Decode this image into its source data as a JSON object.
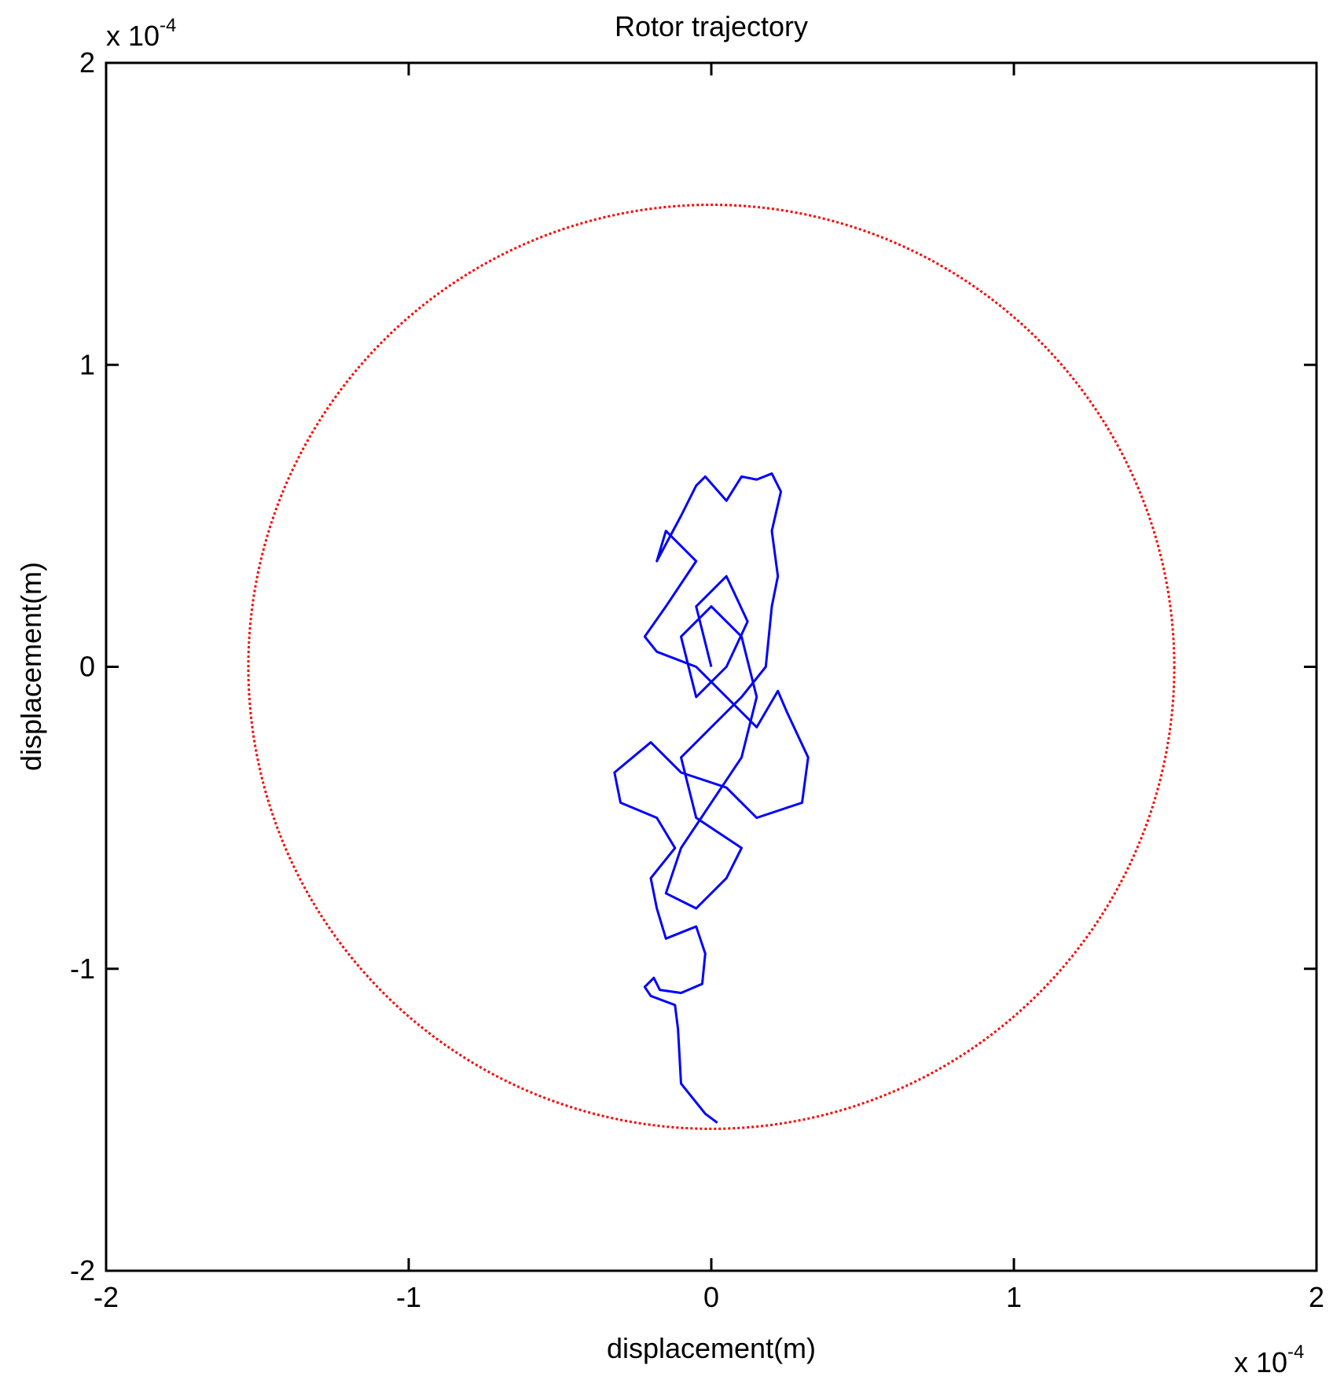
{
  "chart_data": {
    "type": "line",
    "title": "Rotor trajectory",
    "x_label": "displacement(m)",
    "y_label": "displacement(m)",
    "x_multiplier": {
      "base": "x 10",
      "exponent": "-4"
    },
    "y_multiplier": {
      "base": "x 10",
      "exponent": "-4"
    },
    "xlim": [
      -2,
      2
    ],
    "ylim": [
      -2,
      2
    ],
    "xticks": [
      -2,
      -1,
      0,
      1,
      2
    ],
    "yticks": [
      -2,
      -1,
      0,
      1,
      2
    ],
    "circle": {
      "center": [
        0,
        0
      ],
      "radius": 1.53,
      "color": "#ff0000"
    },
    "series": [
      {
        "color": "#0000ff",
        "x": [
          0.02,
          -0.02,
          -0.1,
          -0.11,
          -0.12,
          -0.2,
          -0.22,
          -0.19,
          -0.17,
          -0.1,
          -0.03,
          -0.02,
          -0.05,
          -0.15,
          -0.18,
          -0.2,
          -0.12,
          -0.18,
          -0.3,
          -0.32,
          -0.2,
          -0.1,
          0.05,
          0.15,
          0.3,
          0.32,
          0.25,
          0.22,
          0.15,
          0.05,
          -0.05,
          -0.18,
          -0.22,
          -0.15,
          -0.05,
          -0.15,
          -0.18,
          -0.1,
          -0.05,
          -0.02,
          0.05,
          0.1,
          0.15,
          0.2,
          0.23,
          0.2,
          0.22,
          0.2,
          0.18,
          0.1,
          0.0,
          -0.1,
          -0.05,
          0.1,
          0.05,
          -0.05,
          -0.15,
          -0.1,
          0.0,
          0.1,
          0.15,
          0.1,
          0.0,
          -0.1,
          -0.05,
          0.05,
          0.12,
          0.05,
          -0.05,
          0.0
        ],
        "y": [
          -1.51,
          -1.48,
          -1.38,
          -1.2,
          -1.12,
          -1.09,
          -1.06,
          -1.03,
          -1.07,
          -1.08,
          -1.05,
          -0.95,
          -0.86,
          -0.9,
          -0.8,
          -0.7,
          -0.6,
          -0.5,
          -0.45,
          -0.35,
          -0.25,
          -0.35,
          -0.4,
          -0.5,
          -0.45,
          -0.3,
          -0.15,
          -0.08,
          -0.2,
          -0.1,
          0.0,
          0.05,
          0.1,
          0.2,
          0.35,
          0.45,
          0.35,
          0.5,
          0.6,
          0.63,
          0.55,
          0.63,
          0.62,
          0.64,
          0.58,
          0.45,
          0.3,
          0.2,
          0.0,
          -0.1,
          -0.2,
          -0.3,
          -0.5,
          -0.6,
          -0.7,
          -0.8,
          -0.75,
          -0.6,
          -0.45,
          -0.3,
          -0.1,
          0.1,
          0.2,
          0.1,
          -0.1,
          0.0,
          0.15,
          0.3,
          0.2,
          0.0
        ]
      }
    ]
  }
}
